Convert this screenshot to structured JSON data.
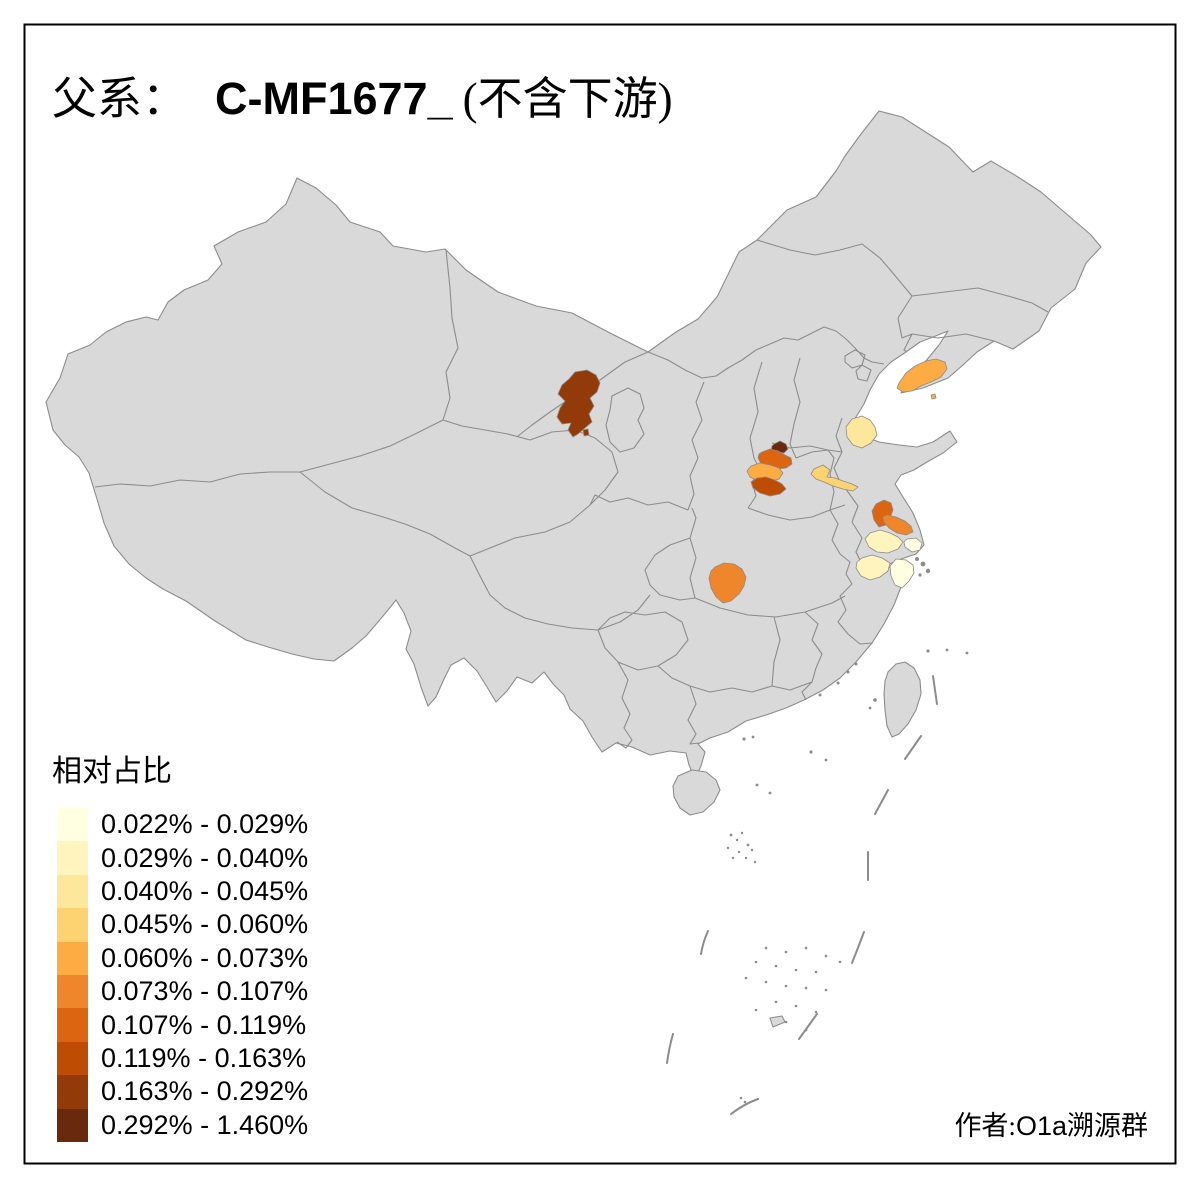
{
  "title": {
    "prefix": "父系：",
    "code": "C-MF1677_",
    "suffix": "(不含下游)"
  },
  "legend": {
    "title": "相对占比",
    "classes": [
      {
        "label": "0.022% - 0.029%",
        "color": "#FFFFE2"
      },
      {
        "label": "0.029% - 0.040%",
        "color": "#FFF4BE"
      },
      {
        "label": "0.040% - 0.045%",
        "color": "#FDE79B"
      },
      {
        "label": "0.045% - 0.060%",
        "color": "#FDD271"
      },
      {
        "label": "0.060% - 0.073%",
        "color": "#FCAC42"
      },
      {
        "label": "0.073% - 0.107%",
        "color": "#F0862B"
      },
      {
        "label": "0.107% - 0.119%",
        "color": "#DB6511"
      },
      {
        "label": "0.119% - 0.163%",
        "color": "#BF4C03"
      },
      {
        "label": "0.163% - 0.292%",
        "color": "#923A08"
      },
      {
        "label": "0.292% - 1.460%",
        "color": "#69290C"
      }
    ]
  },
  "author": {
    "prefix": "作者:",
    "code": "O1a",
    "suffix": "溯源群"
  },
  "map": {
    "land_color": "#D9D9D9",
    "border_color": "#8C8C8C",
    "frame_color": "#000000",
    "regions": [
      {
        "id": "liaoning-dalian",
        "class_index": 5
      },
      {
        "id": "gansu-center",
        "class_index": 9
      },
      {
        "id": "shandong-delta",
        "class_index": 3
      },
      {
        "id": "henan-north-dark",
        "class_index": 10
      },
      {
        "id": "henan-zhengzhou",
        "class_index": 7
      },
      {
        "id": "henan-central-light",
        "class_index": 5
      },
      {
        "id": "henan-south-dark",
        "class_index": 8
      },
      {
        "id": "xuzhou-strip",
        "class_index": 4
      },
      {
        "id": "jiangsu-north",
        "class_index": 7
      },
      {
        "id": "jiangsu-coast",
        "class_index": 6
      },
      {
        "id": "jiangsu-south",
        "class_index": 2
      },
      {
        "id": "shanghai",
        "class_index": 1
      },
      {
        "id": "zhejiang-north",
        "class_index": 2
      },
      {
        "id": "zhejiang-ningbo",
        "class_index": 1
      },
      {
        "id": "hubei-yichang",
        "class_index": 6
      }
    ]
  }
}
